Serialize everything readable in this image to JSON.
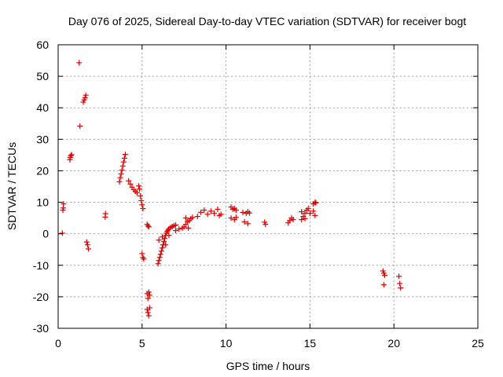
{
  "chart_data": {
    "type": "scatter",
    "title": "Day 076 of 2025, Sidereal Day-to-day VTEC variation (SDTVAR) for receiver bogt",
    "xlabel": "GPS time / hours",
    "ylabel": "SDTVAR / TECUs",
    "xlim": [
      0,
      25
    ],
    "ylim": [
      -30,
      60
    ],
    "xticks": [
      0,
      5,
      10,
      15,
      20,
      25
    ],
    "yticks": [
      -30,
      -20,
      -10,
      0,
      10,
      20,
      30,
      40,
      50,
      60
    ],
    "grid": true,
    "marker": "+",
    "color": "#e00000",
    "series": [
      {
        "name": "SDTVAR",
        "points": [
          [
            0.25,
            0.2
          ],
          [
            0.28,
            7.5
          ],
          [
            0.3,
            8.2
          ],
          [
            0.32,
            9.5
          ],
          [
            0.7,
            23.5
          ],
          [
            0.72,
            24.2
          ],
          [
            0.75,
            24.8
          ],
          [
            0.8,
            25.1
          ],
          [
            1.25,
            54.3
          ],
          [
            1.3,
            34.2
          ],
          [
            1.5,
            41.8
          ],
          [
            1.55,
            42.5
          ],
          [
            1.6,
            43.2
          ],
          [
            1.65,
            44.0
          ],
          [
            1.7,
            -2.6
          ],
          [
            1.75,
            -3.5
          ],
          [
            1.8,
            -4.8
          ],
          [
            2.8,
            5.3
          ],
          [
            2.82,
            6.4
          ],
          [
            3.65,
            16.5
          ],
          [
            3.7,
            17.8
          ],
          [
            3.75,
            19.0
          ],
          [
            3.8,
            20.2
          ],
          [
            3.85,
            21.5
          ],
          [
            3.9,
            22.8
          ],
          [
            3.95,
            24.0
          ],
          [
            4.0,
            25.2
          ],
          [
            4.2,
            16.8
          ],
          [
            4.3,
            15.8
          ],
          [
            4.4,
            14.8
          ],
          [
            4.5,
            14.0
          ],
          [
            4.6,
            13.5
          ],
          [
            4.7,
            13.0
          ],
          [
            4.8,
            15.2
          ],
          [
            4.85,
            14.2
          ],
          [
            4.9,
            12.0
          ],
          [
            4.95,
            10.5
          ],
          [
            5.0,
            9.2
          ],
          [
            5.05,
            8.0
          ],
          [
            5.0,
            -6.3
          ],
          [
            5.05,
            -7.5
          ],
          [
            5.1,
            -8.0
          ],
          [
            5.3,
            3.0
          ],
          [
            5.35,
            2.5
          ],
          [
            5.4,
            2.2
          ],
          [
            5.3,
            -19.0
          ],
          [
            5.35,
            -20.5
          ],
          [
            5.4,
            -18.5
          ],
          [
            5.45,
            -19.5
          ],
          [
            5.3,
            -24.0
          ],
          [
            5.35,
            -25.0
          ],
          [
            5.4,
            -26.0
          ],
          [
            5.45,
            -23.5
          ],
          [
            5.95,
            -9.5
          ],
          [
            6.0,
            -8.5
          ],
          [
            6.05,
            -7.5
          ],
          [
            6.1,
            -6.5
          ],
          [
            6.15,
            -5.5
          ],
          [
            6.2,
            -4.5
          ],
          [
            6.25,
            -3.5
          ],
          [
            6.3,
            -2.5
          ],
          [
            6.35,
            -1.5
          ],
          [
            6.4,
            -0.5
          ],
          [
            6.45,
            0.2
          ],
          [
            6.5,
            0.8
          ],
          [
            6.55,
            1.2
          ],
          [
            6.6,
            1.6
          ],
          [
            6.7,
            2.0
          ],
          [
            6.8,
            2.3
          ],
          [
            6.9,
            2.6
          ],
          [
            7.0,
            2.8
          ],
          [
            6.0,
            -2.0
          ],
          [
            6.2,
            -1.0
          ],
          [
            6.4,
            -3.5
          ],
          [
            6.6,
            -0.5
          ],
          [
            7.0,
            1.0
          ],
          [
            7.2,
            1.5
          ],
          [
            7.4,
            1.8
          ],
          [
            7.5,
            2.2
          ],
          [
            7.6,
            3.0
          ],
          [
            7.7,
            3.8
          ],
          [
            7.8,
            4.2
          ],
          [
            7.9,
            4.8
          ],
          [
            8.0,
            5.2
          ],
          [
            7.75,
            1.8
          ],
          [
            7.6,
            5.0
          ],
          [
            8.3,
            5.5
          ],
          [
            8.5,
            6.8
          ],
          [
            8.7,
            7.5
          ],
          [
            8.9,
            6.2
          ],
          [
            9.1,
            7.2
          ],
          [
            9.3,
            6.5
          ],
          [
            9.5,
            7.8
          ],
          [
            9.6,
            5.8
          ],
          [
            9.7,
            6.2
          ],
          [
            10.3,
            8.5
          ],
          [
            10.4,
            7.8
          ],
          [
            10.5,
            8.0
          ],
          [
            10.6,
            7.5
          ],
          [
            10.3,
            5.0
          ],
          [
            10.5,
            4.5
          ],
          [
            10.6,
            5.2
          ],
          [
            11.0,
            6.8
          ],
          [
            11.2,
            6.5
          ],
          [
            11.3,
            7.0
          ],
          [
            11.4,
            6.6
          ],
          [
            11.1,
            3.8
          ],
          [
            11.3,
            3.2
          ],
          [
            12.3,
            3.7
          ],
          [
            12.35,
            3.0
          ],
          [
            13.7,
            3.5
          ],
          [
            13.8,
            4.2
          ],
          [
            13.9,
            5.0
          ],
          [
            14.0,
            4.5
          ],
          [
            14.5,
            4.5
          ],
          [
            14.6,
            5.5
          ],
          [
            14.7,
            6.5
          ],
          [
            14.8,
            7.5
          ],
          [
            14.9,
            8.0
          ],
          [
            15.0,
            6.5
          ],
          [
            14.5,
            7.0
          ],
          [
            14.7,
            4.8
          ],
          [
            15.2,
            9.5
          ],
          [
            15.3,
            10.0
          ],
          [
            15.35,
            9.8
          ],
          [
            15.2,
            7.2
          ],
          [
            15.3,
            5.8
          ],
          [
            19.35,
            -11.8
          ],
          [
            19.4,
            -12.5
          ],
          [
            19.45,
            -13.2
          ],
          [
            19.4,
            -16.2
          ],
          [
            20.3,
            -13.5
          ],
          [
            20.35,
            -15.8
          ],
          [
            20.4,
            -17.2
          ]
        ]
      }
    ]
  }
}
